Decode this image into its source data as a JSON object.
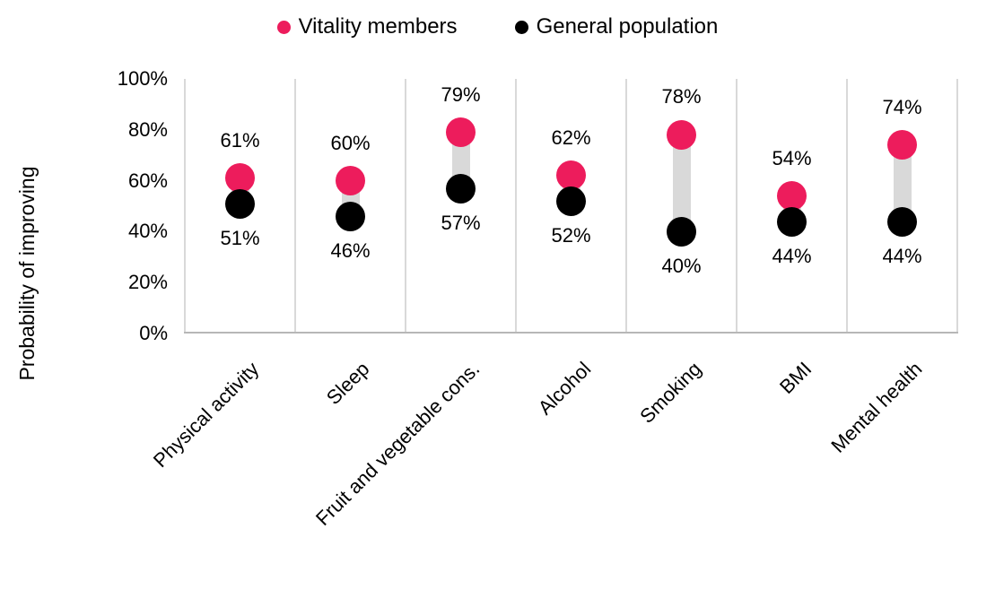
{
  "chart_data": {
    "type": "dumbbell",
    "title": "",
    "ylabel": "Probability of improving",
    "xlabel": "",
    "categories": [
      "Physical activity",
      "Sleep",
      "Fruit and vegetable cons.",
      "Alcohol",
      "Smoking",
      "BMI",
      "Mental health"
    ],
    "series": [
      {
        "name": "Vitality members",
        "color": "#ED1C5C",
        "values": [
          61,
          60,
          79,
          62,
          78,
          54,
          74
        ]
      },
      {
        "name": "General population",
        "color": "#000000",
        "values": [
          51,
          46,
          57,
          52,
          40,
          44,
          44
        ]
      }
    ],
    "value_suffix": "%",
    "ylim": [
      0,
      100
    ],
    "yticks": [
      100,
      80,
      60,
      40,
      20,
      0
    ],
    "ytick_suffix": "%",
    "legend_position": "top",
    "grid": "vertical-column-separators",
    "connector_color": "#D9D9D9",
    "separator_color": "#D9D9D9",
    "axis_line_color": "#B7B7B7",
    "text_color": "#000000",
    "background_color": "#FFFFFF"
  }
}
